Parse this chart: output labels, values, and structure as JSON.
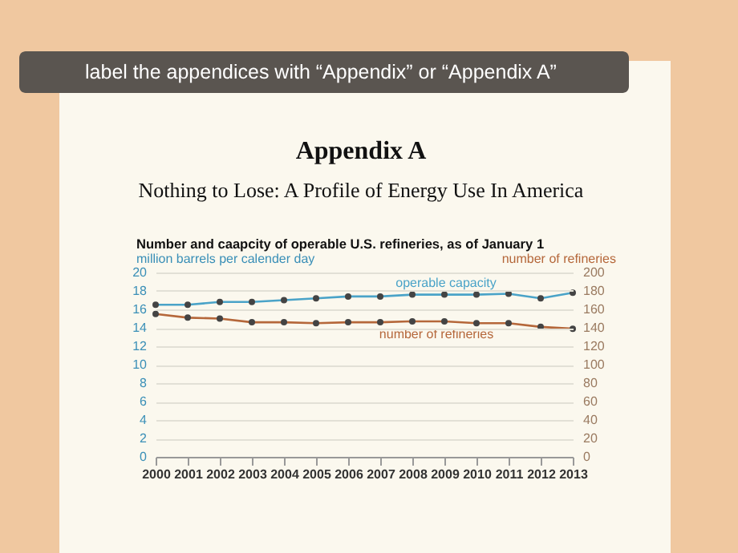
{
  "chart_data": {
    "type": "line",
    "title": "Number and caapcity of operable U.S. refineries, as of January 1",
    "annotations": [
      "label the appendices with “Appendix” or “Appendix A”",
      "Appendix A",
      "Nothing to Lose: A Profile of Energy Use In America"
    ],
    "ylabel": "million barrels per calender day",
    "y2label": "number of refineries",
    "x": [
      2000,
      2001,
      2002,
      2003,
      2004,
      2005,
      2006,
      2007,
      2008,
      2009,
      2010,
      2011,
      2012,
      2013
    ],
    "series": [
      {
        "name": "operable capacity",
        "color": "#4aa3c8",
        "values": [
          16.5,
          16.5,
          16.8,
          16.8,
          17.0,
          17.2,
          17.4,
          17.4,
          17.6,
          17.6,
          17.6,
          17.7,
          17.2,
          17.8
        ]
      },
      {
        "name": "number of refineries",
        "color": "#b5673a",
        "axis": "y2",
        "values": [
          155,
          151,
          150,
          146,
          146,
          145,
          146,
          146,
          147,
          147,
          145,
          145,
          141,
          139
        ]
      }
    ],
    "xlim": [
      2000,
      2013
    ],
    "xticks": [
      2000,
      2001,
      2002,
      2003,
      2004,
      2005,
      2006,
      2007,
      2008,
      2009,
      2010,
      2011,
      2012,
      2013
    ],
    "ylim": [
      0,
      20
    ],
    "yticks": [
      0,
      2,
      4,
      6,
      8,
      10,
      12,
      14,
      16,
      18,
      20
    ],
    "y2lim": [
      0,
      200
    ],
    "y2ticks": [
      0,
      20,
      40,
      60,
      80,
      100,
      120,
      140,
      160,
      180,
      200
    ],
    "grid": "y",
    "marker": "circle",
    "line_style": "solid",
    "legend": false
  }
}
